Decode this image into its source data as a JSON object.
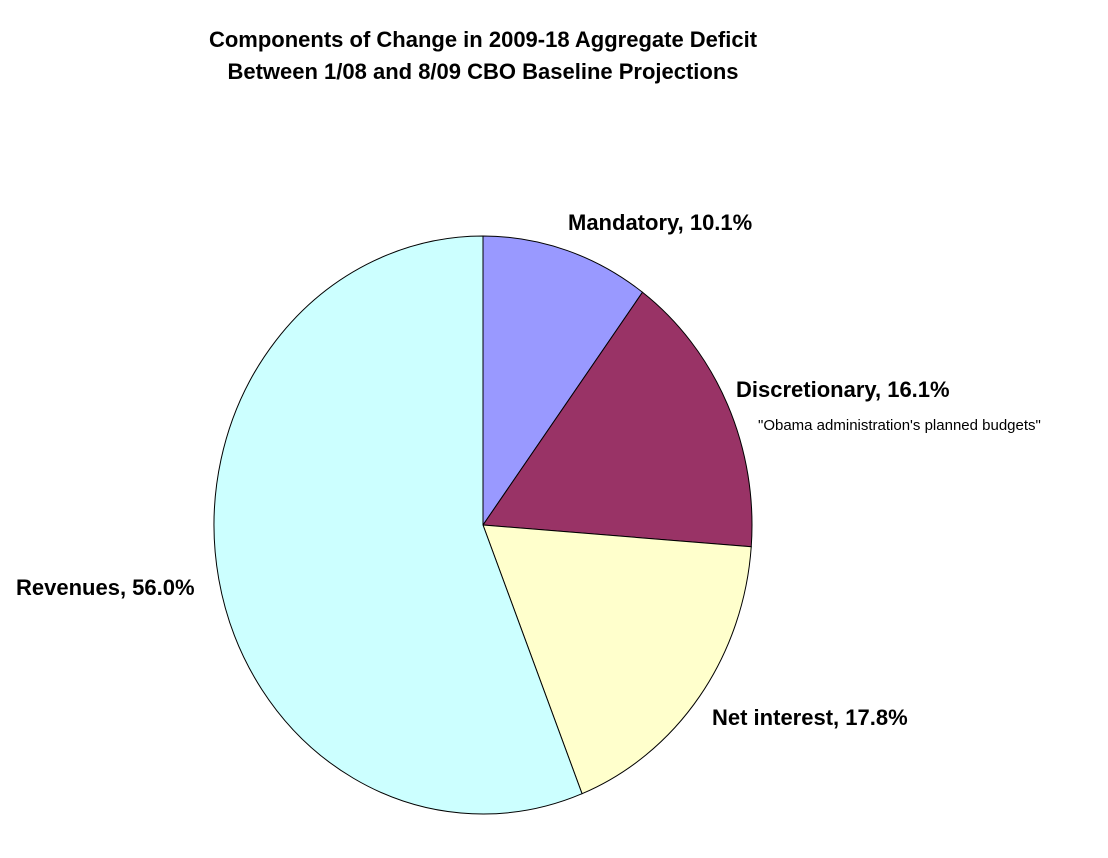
{
  "chart_data": {
    "type": "pie",
    "title": "Components of Change in 2009-18 Aggregate Deficit",
    "subtitle": "Between 1/08 and 8/09 CBO Baseline Projections",
    "slices": [
      {
        "label": "Mandatory, 10.1%",
        "name": "Mandatory",
        "value": 10.1,
        "color": "#9999ff"
      },
      {
        "label": "Discretionary, 16.1%",
        "name": "Discretionary",
        "value": 16.1,
        "color": "#993366"
      },
      {
        "label": "Net interest, 17.8%",
        "name": "Net interest",
        "value": 17.8,
        "color": "#ffffcc"
      },
      {
        "label": "Revenues, 56.0%",
        "name": "Revenues",
        "value": 56.0,
        "color": "#ccffff"
      }
    ],
    "annotations": [
      {
        "text": "\"Obama administration's planned budgets\"",
        "slice": "Discretionary"
      }
    ],
    "start_angle": "12 o'clock",
    "direction": "clockwise",
    "legend": "none",
    "slice_border_color": "#000000"
  }
}
